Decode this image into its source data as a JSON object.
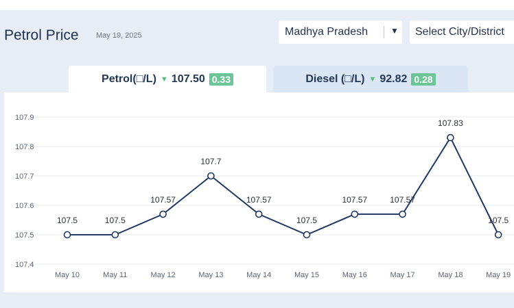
{
  "header": {
    "title": "Petrol Price",
    "date": "May 19, 2025"
  },
  "filters": {
    "state": "Madhya Pradesh",
    "city_placeholder": "Select City/District"
  },
  "tabs": [
    {
      "label": "Petrol(□/L)",
      "price": "107.50",
      "change": "0.33",
      "trend": "down"
    },
    {
      "label": "Diesel (□/L)",
      "price": "92.82",
      "change": "0.28",
      "trend": "down"
    }
  ],
  "colors": {
    "line": "#1f3864",
    "down_arrow": "#4fbf7f",
    "change_badge": "#6cc597",
    "active_tab": "#ffffff",
    "inactive_tab": "#dbe6f5"
  },
  "chart_data": {
    "type": "line",
    "categories": [
      "May 10",
      "May 11",
      "May 12",
      "May 13",
      "May 14",
      "May 15",
      "May 16",
      "May 17",
      "May 18",
      "May 19"
    ],
    "values": [
      107.5,
      107.5,
      107.57,
      107.7,
      107.57,
      107.5,
      107.57,
      107.57,
      107.83,
      107.5
    ],
    "data_labels": [
      "107.5",
      "107.5",
      "107.57",
      "107.7",
      "107.57",
      "107.5",
      "107.57",
      "107.57",
      "107.83",
      "107.5"
    ],
    "y_ticks": [
      "107.4",
      "107.5",
      "107.6",
      "107.7",
      "107.8",
      "107.9"
    ],
    "ylim": [
      107.4,
      107.9
    ],
    "grid": true,
    "legend": "none"
  }
}
